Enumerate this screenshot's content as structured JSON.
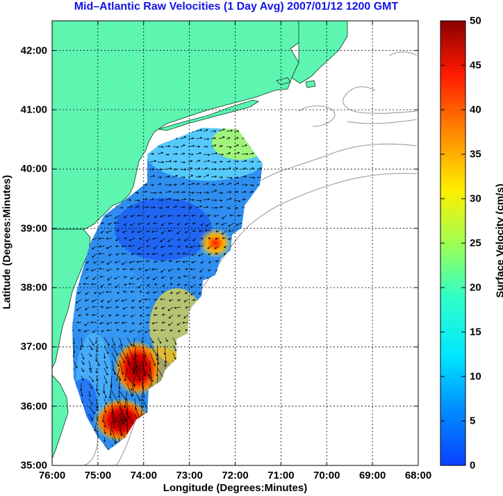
{
  "title": "Mid–Atlantic Raw Velocities (1 Day Avg) 2007/01/12 1200 GMT",
  "map": {
    "x_axis_label": "Longitude (Degrees:Minutes)",
    "y_axis_label": "Latitude (Degrees:Minutes)",
    "x_ticks": [
      "76:00",
      "75:00",
      "74:00",
      "73:00",
      "72:00",
      "71:00",
      "70:00",
      "69:00",
      "68:00"
    ],
    "y_ticks": [
      "42:00",
      "41:00",
      "40:00",
      "39:00",
      "38:00",
      "37:00",
      "36:00",
      "35:00"
    ],
    "lon_range": [
      -76.0,
      -68.0
    ],
    "lat_range": [
      35.0,
      42.5
    ],
    "grid": true,
    "land_color": "#5df5b0",
    "bathymetry_color": "#999999"
  },
  "colorbar": {
    "label": "Surface Velocity (cm/s)",
    "ticks": [
      "50",
      "45",
      "40",
      "35",
      "30",
      "25",
      "20",
      "15",
      "10",
      "5",
      "0"
    ],
    "range": [
      0,
      50
    ],
    "colormap": "jet"
  }
}
